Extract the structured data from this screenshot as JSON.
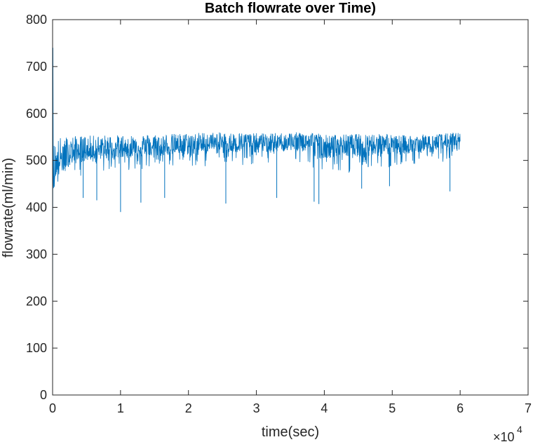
{
  "chart_data": {
    "type": "line",
    "title": "Batch flowrate over Time)",
    "xlabel": "time(sec)",
    "ylabel": "flowrate(ml/min)",
    "xlim": [
      0,
      70000
    ],
    "ylim": [
      0,
      800
    ],
    "x_ticks": [
      0,
      10000,
      20000,
      30000,
      40000,
      50000,
      60000,
      70000
    ],
    "x_tick_labels": [
      "0",
      "1",
      "2",
      "3",
      "4",
      "5",
      "6",
      "7"
    ],
    "y_ticks": [
      0,
      100,
      200,
      300,
      400,
      500,
      600,
      700,
      800
    ],
    "y_tick_labels": [
      "0",
      "100",
      "200",
      "300",
      "400",
      "500",
      "600",
      "700",
      "800"
    ],
    "x_exponent_label": {
      "base": "×10",
      "exponent": "4"
    },
    "grid": false,
    "box": true,
    "color": "#0072BD",
    "series": [
      {
        "x": [
          0,
          50,
          100,
          200,
          300,
          500,
          800,
          1000,
          1500,
          2000,
          2500,
          3000,
          4000,
          5000,
          6000,
          8000,
          10000,
          12000,
          14000,
          16000,
          18000,
          20000,
          22000,
          24000,
          26000,
          28000,
          30000,
          32000,
          34000,
          36000,
          38000,
          39000,
          40000,
          42000,
          44000,
          46000,
          48000,
          49500,
          50000,
          52000,
          54000,
          56000,
          58000,
          59000,
          60000
        ],
        "y": [
          0,
          740,
          480,
          460,
          470,
          480,
          490,
          500,
          505,
          510,
          515,
          518,
          520,
          522,
          524,
          525,
          526,
          527,
          529,
          530,
          532,
          533,
          535,
          536,
          537,
          537,
          538,
          538,
          539,
          540,
          540,
          538,
          533,
          534,
          535,
          536,
          537,
          538,
          530,
          532,
          534,
          536,
          538,
          539,
          540
        ],
        "upper": [
          740,
          740,
          540,
          540,
          542,
          545,
          548,
          550,
          550,
          551,
          551,
          552,
          552,
          553,
          553,
          554,
          554,
          555,
          556,
          556,
          557,
          558,
          560,
          560,
          559,
          559,
          558,
          558,
          559,
          560,
          560,
          559,
          555,
          555,
          556,
          557,
          558,
          558,
          553,
          554,
          555,
          556,
          558,
          559,
          560
        ],
        "lower": [
          0,
          0,
          400,
          405,
          410,
          420,
          425,
          430,
          440,
          450,
          455,
          460,
          465,
          470,
          472,
          475,
          478,
          480,
          482,
          484,
          485,
          486,
          487,
          488,
          489,
          490,
          490,
          491,
          492,
          492,
          492,
          460,
          470,
          472,
          474,
          476,
          478,
          480,
          490,
          492,
          493,
          494,
          495,
          496,
          497
        ]
      }
    ],
    "spikes": [
      {
        "x": 4500,
        "y": 420
      },
      {
        "x": 6500,
        "y": 415
      },
      {
        "x": 10000,
        "y": 390
      },
      {
        "x": 13000,
        "y": 410
      },
      {
        "x": 16500,
        "y": 420
      },
      {
        "x": 25500,
        "y": 408
      },
      {
        "x": 33000,
        "y": 420
      },
      {
        "x": 38500,
        "y": 412
      },
      {
        "x": 39200,
        "y": 407
      },
      {
        "x": 45500,
        "y": 440
      },
      {
        "x": 49600,
        "y": 445
      },
      {
        "x": 58500,
        "y": 434
      }
    ]
  }
}
